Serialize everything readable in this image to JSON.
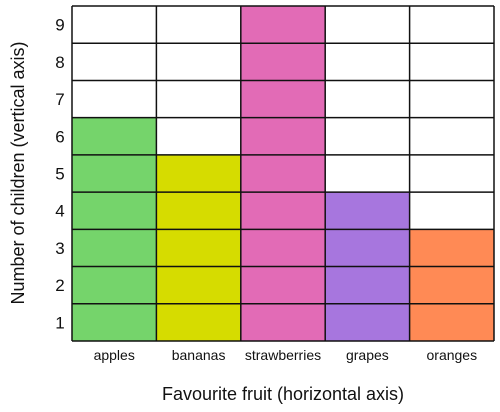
{
  "chart_data": {
    "type": "bar",
    "categories": [
      "apples",
      "bananas",
      "strawberries",
      "grapes",
      "oranges"
    ],
    "values": [
      6,
      5,
      9,
      4,
      3
    ],
    "colors": [
      "#75d46b",
      "#d6dc00",
      "#e26bb6",
      "#a776de",
      "#ff8a55"
    ],
    "xlabel": "Favourite fruit (horizontal axis)",
    "ylabel": "Number of children (vertical axis)",
    "ylim": [
      0,
      9
    ],
    "yticks": [
      "1",
      "2",
      "3",
      "4",
      "5",
      "6",
      "7",
      "8",
      "9"
    ],
    "grid": true,
    "legend": "none"
  }
}
